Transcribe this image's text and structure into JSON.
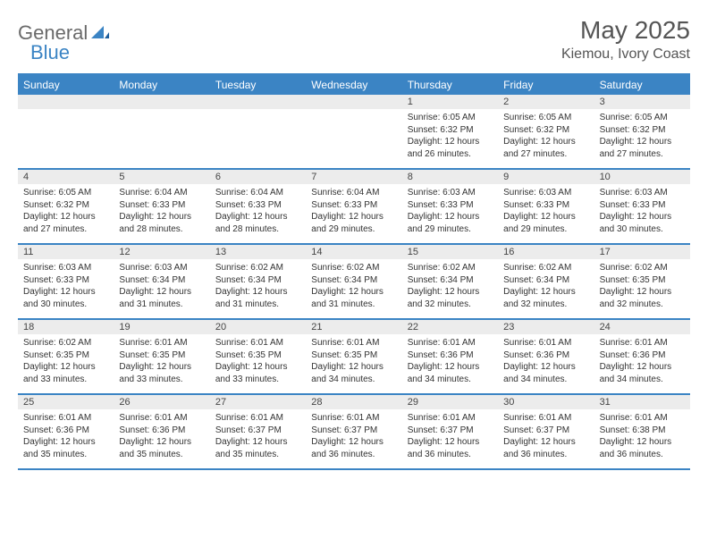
{
  "logo": {
    "text1": "General",
    "text2": "Blue"
  },
  "title": "May 2025",
  "location": "Kiemou, Ivory Coast",
  "colors": {
    "accent": "#3b84c4",
    "header_text": "#ffffff",
    "daynum_bg": "#ececec",
    "text": "#333333",
    "title_color": "#555555"
  },
  "day_names": [
    "Sunday",
    "Monday",
    "Tuesday",
    "Wednesday",
    "Thursday",
    "Friday",
    "Saturday"
  ],
  "weeks": [
    [
      {
        "n": "",
        "sr": "",
        "ss": "",
        "dl": ""
      },
      {
        "n": "",
        "sr": "",
        "ss": "",
        "dl": ""
      },
      {
        "n": "",
        "sr": "",
        "ss": "",
        "dl": ""
      },
      {
        "n": "",
        "sr": "",
        "ss": "",
        "dl": ""
      },
      {
        "n": "1",
        "sr": "Sunrise: 6:05 AM",
        "ss": "Sunset: 6:32 PM",
        "dl": "Daylight: 12 hours and 26 minutes."
      },
      {
        "n": "2",
        "sr": "Sunrise: 6:05 AM",
        "ss": "Sunset: 6:32 PM",
        "dl": "Daylight: 12 hours and 27 minutes."
      },
      {
        "n": "3",
        "sr": "Sunrise: 6:05 AM",
        "ss": "Sunset: 6:32 PM",
        "dl": "Daylight: 12 hours and 27 minutes."
      }
    ],
    [
      {
        "n": "4",
        "sr": "Sunrise: 6:05 AM",
        "ss": "Sunset: 6:32 PM",
        "dl": "Daylight: 12 hours and 27 minutes."
      },
      {
        "n": "5",
        "sr": "Sunrise: 6:04 AM",
        "ss": "Sunset: 6:33 PM",
        "dl": "Daylight: 12 hours and 28 minutes."
      },
      {
        "n": "6",
        "sr": "Sunrise: 6:04 AM",
        "ss": "Sunset: 6:33 PM",
        "dl": "Daylight: 12 hours and 28 minutes."
      },
      {
        "n": "7",
        "sr": "Sunrise: 6:04 AM",
        "ss": "Sunset: 6:33 PM",
        "dl": "Daylight: 12 hours and 29 minutes."
      },
      {
        "n": "8",
        "sr": "Sunrise: 6:03 AM",
        "ss": "Sunset: 6:33 PM",
        "dl": "Daylight: 12 hours and 29 minutes."
      },
      {
        "n": "9",
        "sr": "Sunrise: 6:03 AM",
        "ss": "Sunset: 6:33 PM",
        "dl": "Daylight: 12 hours and 29 minutes."
      },
      {
        "n": "10",
        "sr": "Sunrise: 6:03 AM",
        "ss": "Sunset: 6:33 PM",
        "dl": "Daylight: 12 hours and 30 minutes."
      }
    ],
    [
      {
        "n": "11",
        "sr": "Sunrise: 6:03 AM",
        "ss": "Sunset: 6:33 PM",
        "dl": "Daylight: 12 hours and 30 minutes."
      },
      {
        "n": "12",
        "sr": "Sunrise: 6:03 AM",
        "ss": "Sunset: 6:34 PM",
        "dl": "Daylight: 12 hours and 31 minutes."
      },
      {
        "n": "13",
        "sr": "Sunrise: 6:02 AM",
        "ss": "Sunset: 6:34 PM",
        "dl": "Daylight: 12 hours and 31 minutes."
      },
      {
        "n": "14",
        "sr": "Sunrise: 6:02 AM",
        "ss": "Sunset: 6:34 PM",
        "dl": "Daylight: 12 hours and 31 minutes."
      },
      {
        "n": "15",
        "sr": "Sunrise: 6:02 AM",
        "ss": "Sunset: 6:34 PM",
        "dl": "Daylight: 12 hours and 32 minutes."
      },
      {
        "n": "16",
        "sr": "Sunrise: 6:02 AM",
        "ss": "Sunset: 6:34 PM",
        "dl": "Daylight: 12 hours and 32 minutes."
      },
      {
        "n": "17",
        "sr": "Sunrise: 6:02 AM",
        "ss": "Sunset: 6:35 PM",
        "dl": "Daylight: 12 hours and 32 minutes."
      }
    ],
    [
      {
        "n": "18",
        "sr": "Sunrise: 6:02 AM",
        "ss": "Sunset: 6:35 PM",
        "dl": "Daylight: 12 hours and 33 minutes."
      },
      {
        "n": "19",
        "sr": "Sunrise: 6:01 AM",
        "ss": "Sunset: 6:35 PM",
        "dl": "Daylight: 12 hours and 33 minutes."
      },
      {
        "n": "20",
        "sr": "Sunrise: 6:01 AM",
        "ss": "Sunset: 6:35 PM",
        "dl": "Daylight: 12 hours and 33 minutes."
      },
      {
        "n": "21",
        "sr": "Sunrise: 6:01 AM",
        "ss": "Sunset: 6:35 PM",
        "dl": "Daylight: 12 hours and 34 minutes."
      },
      {
        "n": "22",
        "sr": "Sunrise: 6:01 AM",
        "ss": "Sunset: 6:36 PM",
        "dl": "Daylight: 12 hours and 34 minutes."
      },
      {
        "n": "23",
        "sr": "Sunrise: 6:01 AM",
        "ss": "Sunset: 6:36 PM",
        "dl": "Daylight: 12 hours and 34 minutes."
      },
      {
        "n": "24",
        "sr": "Sunrise: 6:01 AM",
        "ss": "Sunset: 6:36 PM",
        "dl": "Daylight: 12 hours and 34 minutes."
      }
    ],
    [
      {
        "n": "25",
        "sr": "Sunrise: 6:01 AM",
        "ss": "Sunset: 6:36 PM",
        "dl": "Daylight: 12 hours and 35 minutes."
      },
      {
        "n": "26",
        "sr": "Sunrise: 6:01 AM",
        "ss": "Sunset: 6:36 PM",
        "dl": "Daylight: 12 hours and 35 minutes."
      },
      {
        "n": "27",
        "sr": "Sunrise: 6:01 AM",
        "ss": "Sunset: 6:37 PM",
        "dl": "Daylight: 12 hours and 35 minutes."
      },
      {
        "n": "28",
        "sr": "Sunrise: 6:01 AM",
        "ss": "Sunset: 6:37 PM",
        "dl": "Daylight: 12 hours and 36 minutes."
      },
      {
        "n": "29",
        "sr": "Sunrise: 6:01 AM",
        "ss": "Sunset: 6:37 PM",
        "dl": "Daylight: 12 hours and 36 minutes."
      },
      {
        "n": "30",
        "sr": "Sunrise: 6:01 AM",
        "ss": "Sunset: 6:37 PM",
        "dl": "Daylight: 12 hours and 36 minutes."
      },
      {
        "n": "31",
        "sr": "Sunrise: 6:01 AM",
        "ss": "Sunset: 6:38 PM",
        "dl": "Daylight: 12 hours and 36 minutes."
      }
    ]
  ]
}
